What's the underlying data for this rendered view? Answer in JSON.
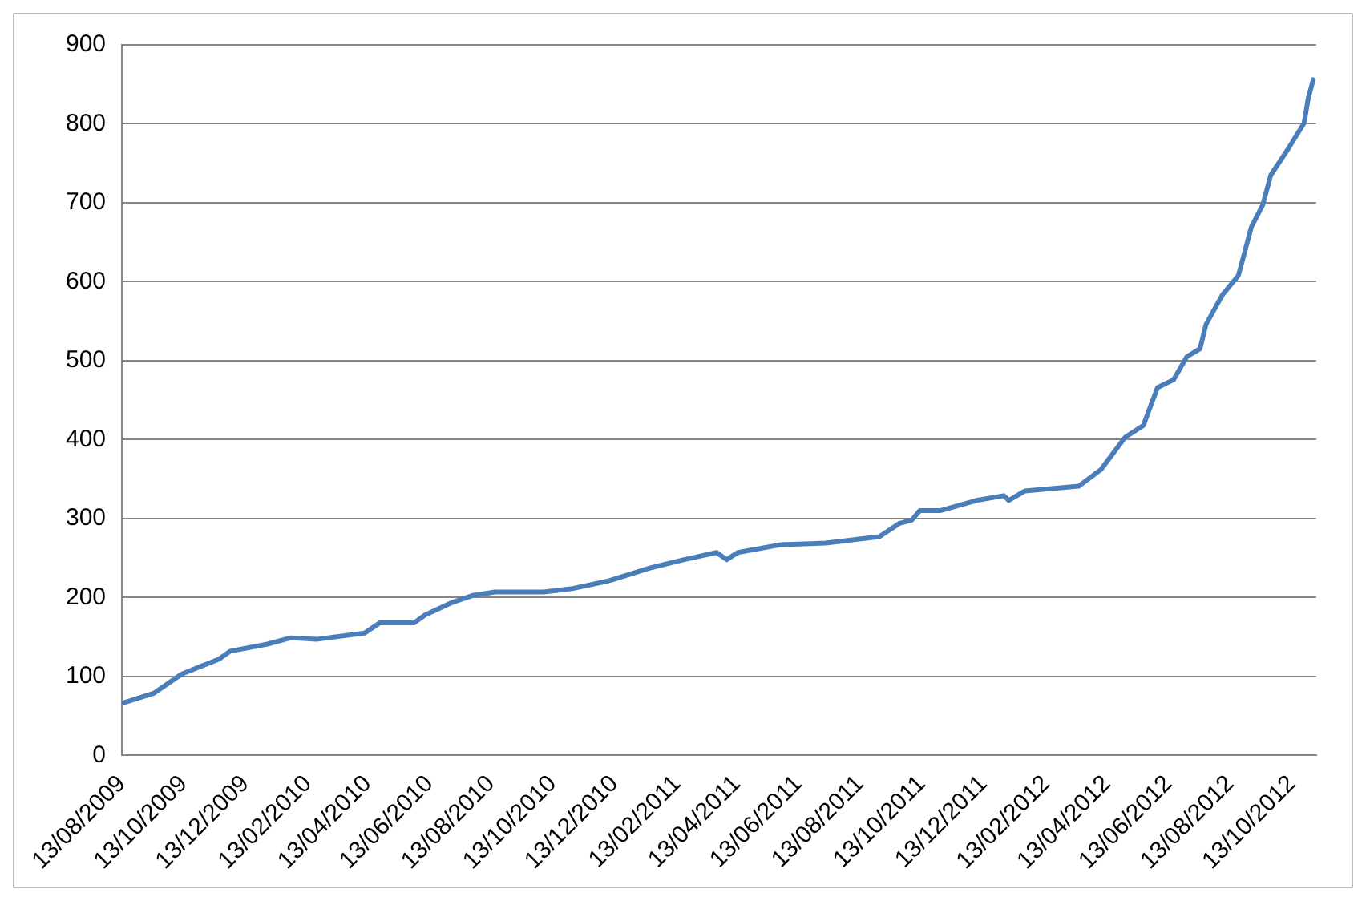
{
  "chart_data": {
    "type": "line",
    "x": [
      "2009-08-13",
      "2009-09-14",
      "2009-10-11",
      "2009-11-17",
      "2009-11-28",
      "2010-01-04",
      "2010-01-27",
      "2010-02-21",
      "2010-04-10",
      "2010-04-25",
      "2010-05-29",
      "2010-06-09",
      "2010-07-06",
      "2010-07-27",
      "2010-08-17",
      "2010-10-04",
      "2010-10-31",
      "2010-12-07",
      "2011-01-19",
      "2011-02-20",
      "2011-03-24",
      "2011-04-03",
      "2011-04-14",
      "2011-05-27",
      "2011-07-10",
      "2011-09-01",
      "2011-09-21",
      "2011-10-03",
      "2011-10-11",
      "2011-10-31",
      "2011-12-06",
      "2012-01-02",
      "2012-01-07",
      "2012-01-23",
      "2012-03-16",
      "2012-04-07",
      "2012-05-01",
      "2012-05-19",
      "2012-06-02",
      "2012-06-18",
      "2012-07-01",
      "2012-07-14",
      "2012-07-20",
      "2012-08-05",
      "2012-08-21",
      "2012-09-03",
      "2012-09-14",
      "2012-09-22",
      "2012-10-10",
      "2012-10-25",
      "2012-10-29",
      "2012-11-03"
    ],
    "series": [
      {
        "color": "#4a7ebb",
        "values": [
          66,
          79,
          103,
          122,
          132,
          141,
          149,
          147,
          155,
          168,
          168,
          178,
          194,
          203,
          207,
          207,
          211,
          221,
          238,
          248,
          257,
          248,
          257,
          267,
          269,
          277,
          294,
          298,
          310,
          310,
          323,
          329,
          323,
          335,
          341,
          362,
          403,
          418,
          466,
          476,
          505,
          515,
          546,
          583,
          608,
          670,
          697,
          735,
          770,
          801,
          832,
          856
        ]
      }
    ],
    "xlim": [
      "2009-08-13",
      "2012-11-06"
    ],
    "xticks": [
      {
        "value": "2009-08-13",
        "label": "13/08/2009"
      },
      {
        "value": "2009-10-13",
        "label": "13/10/2009"
      },
      {
        "value": "2009-12-13",
        "label": "13/12/2009"
      },
      {
        "value": "2010-02-13",
        "label": "13/02/2010"
      },
      {
        "value": "2010-04-13",
        "label": "13/04/2010"
      },
      {
        "value": "2010-06-13",
        "label": "13/06/2010"
      },
      {
        "value": "2010-08-13",
        "label": "13/08/2010"
      },
      {
        "value": "2010-10-13",
        "label": "13/10/2010"
      },
      {
        "value": "2010-12-13",
        "label": "13/12/2010"
      },
      {
        "value": "2011-02-13",
        "label": "13/02/2011"
      },
      {
        "value": "2011-04-13",
        "label": "13/04/2011"
      },
      {
        "value": "2011-06-13",
        "label": "13/06/2011"
      },
      {
        "value": "2011-08-13",
        "label": "13/08/2011"
      },
      {
        "value": "2011-10-13",
        "label": "13/10/2011"
      },
      {
        "value": "2011-12-13",
        "label": "13/12/2011"
      },
      {
        "value": "2012-02-13",
        "label": "13/02/2012"
      },
      {
        "value": "2012-04-13",
        "label": "13/04/2012"
      },
      {
        "value": "2012-06-13",
        "label": "13/06/2012"
      },
      {
        "value": "2012-08-13",
        "label": "13/08/2012"
      },
      {
        "value": "2012-10-13",
        "label": "13/10/2012"
      }
    ],
    "ylim": [
      0,
      900
    ],
    "yticks": [
      0,
      100,
      200,
      300,
      400,
      500,
      600,
      700,
      800,
      900
    ],
    "grid": "y",
    "legend": false,
    "marker": "none",
    "line_style": "solid"
  }
}
